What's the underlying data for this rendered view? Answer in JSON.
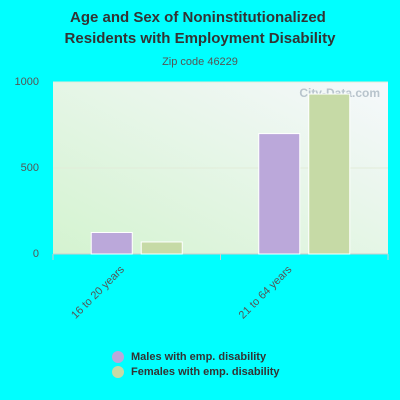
{
  "chart_data": {
    "type": "bar",
    "title": "Age and Sex of Noninstitutionalized Residents with Employment Disability",
    "subtitle": "Zip code 46229",
    "watermark": "City-Data.com",
    "categories": [
      "16 to 20 years",
      "21 to 64 years"
    ],
    "series": [
      {
        "name": "Males with emp. disability",
        "color": "#bba8da",
        "values": [
          125,
          700
        ]
      },
      {
        "name": "Females with emp. disability",
        "color": "#c6daa6",
        "values": [
          70,
          930
        ]
      }
    ],
    "ylim": [
      0,
      1000
    ],
    "yticks": [
      0,
      500,
      1000
    ],
    "grid": true
  }
}
